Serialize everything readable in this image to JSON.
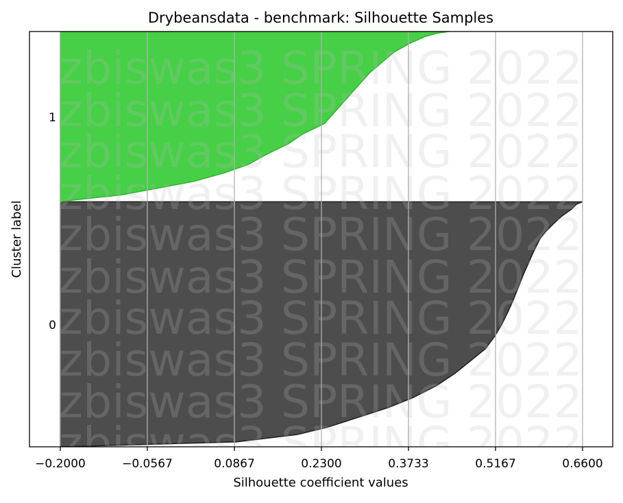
{
  "chart_data": {
    "type": "area",
    "title": "Drybeansdata - benchmark: Silhouette Samples",
    "xlabel": "Silhouette coefficient values",
    "ylabel": "Cluster label",
    "xlim": [
      -0.2,
      0.66
    ],
    "x_ticks": [
      "−0.2000",
      "−0.0567",
      "0.0867",
      "0.2300",
      "0.3733",
      "0.5167",
      "0.6600"
    ],
    "x_tick_values": [
      -0.2,
      -0.0567,
      0.0867,
      0.23,
      0.3733,
      0.5167,
      0.66
    ],
    "y_ticks": [
      "1",
      "0"
    ],
    "grid": "vertical",
    "watermark": "zbiswas3 SPRING 2022",
    "clusters": [
      {
        "label": "0",
        "color": "#4d4d4d",
        "size_fraction": 0.59,
        "profile": [
          [
            0.0,
            -0.2
          ],
          [
            0.02,
            0.09
          ],
          [
            0.05,
            0.19
          ],
          [
            0.08,
            0.24
          ],
          [
            0.12,
            0.29
          ],
          [
            0.16,
            0.34
          ],
          [
            0.2,
            0.38
          ],
          [
            0.25,
            0.42
          ],
          [
            0.3,
            0.45
          ],
          [
            0.35,
            0.475
          ],
          [
            0.4,
            0.5
          ],
          [
            0.45,
            0.515
          ],
          [
            0.5,
            0.527
          ],
          [
            0.55,
            0.537
          ],
          [
            0.6,
            0.546
          ],
          [
            0.65,
            0.554
          ],
          [
            0.7,
            0.562
          ],
          [
            0.75,
            0.571
          ],
          [
            0.8,
            0.58
          ],
          [
            0.85,
            0.59
          ],
          [
            0.88,
            0.6
          ],
          [
            0.91,
            0.612
          ],
          [
            0.94,
            0.625
          ],
          [
            0.97,
            0.642
          ],
          [
            0.99,
            0.65
          ],
          [
            1.0,
            0.66
          ]
        ]
      },
      {
        "label": "1",
        "color": "#47cf47",
        "size_fraction": 0.41,
        "profile": [
          [
            0.0,
            -0.2
          ],
          [
            0.01,
            -0.18
          ],
          [
            0.04,
            -0.1
          ],
          [
            0.08,
            -0.04
          ],
          [
            0.12,
            0.02
          ],
          [
            0.17,
            0.07
          ],
          [
            0.22,
            0.11
          ],
          [
            0.28,
            0.14
          ],
          [
            0.34,
            0.175
          ],
          [
            0.4,
            0.2
          ],
          [
            0.46,
            0.235
          ],
          [
            0.52,
            0.25
          ],
          [
            0.58,
            0.265
          ],
          [
            0.64,
            0.28
          ],
          [
            0.7,
            0.295
          ],
          [
            0.76,
            0.31
          ],
          [
            0.82,
            0.33
          ],
          [
            0.88,
            0.35
          ],
          [
            0.93,
            0.375
          ],
          [
            0.97,
            0.4
          ],
          [
            0.99,
            0.42
          ],
          [
            1.0,
            0.44
          ]
        ]
      }
    ]
  }
}
